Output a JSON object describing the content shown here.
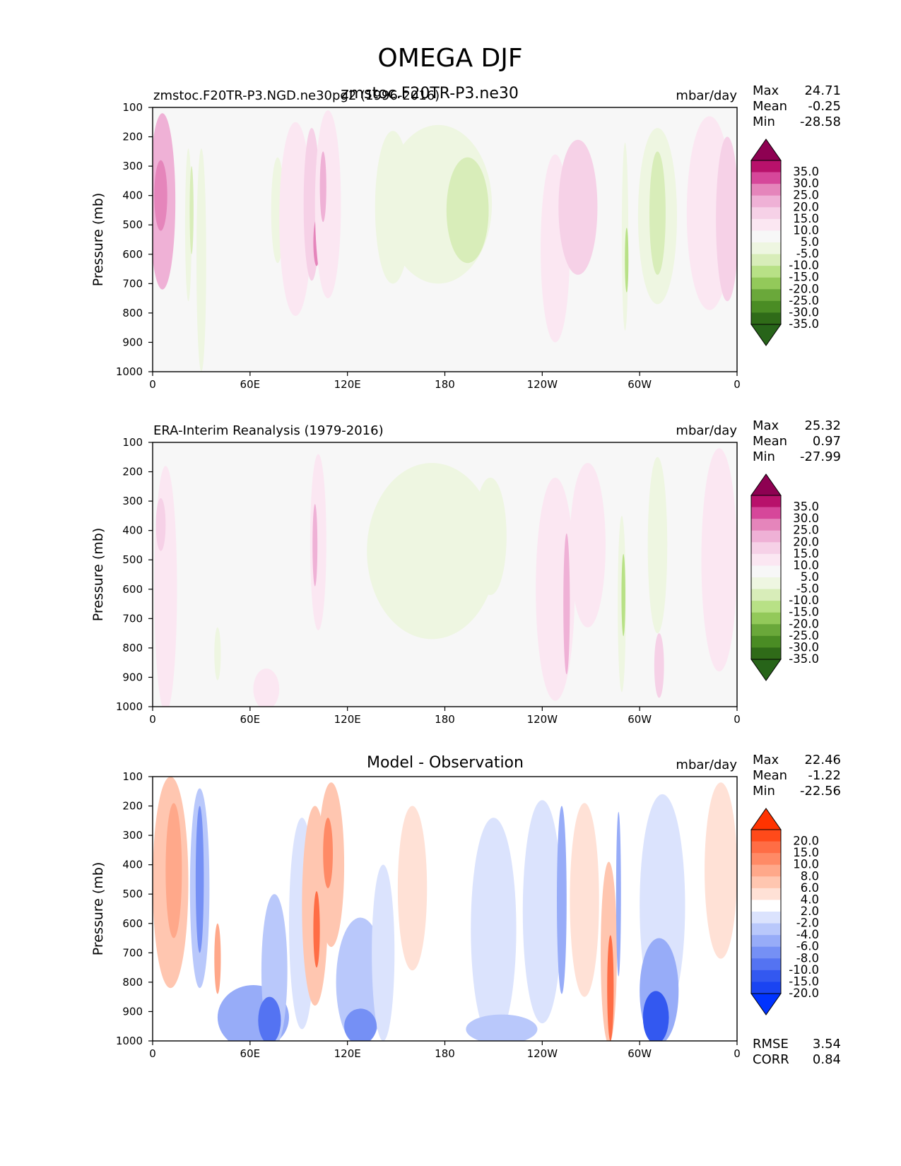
{
  "figure_title": "OMEGA DJF",
  "chart_data": [
    {
      "type": "contour",
      "panel": "model",
      "title_left": "zmstoc.F20TR-P3.NGD.ne30pg2 (1996-2016)",
      "title_center": "zmstoc.F20TR-P3.ne30",
      "units": "mbar/day",
      "ylabel": "Pressure (mb)",
      "xticks": [
        "0",
        "60E",
        "120E",
        "180",
        "120W",
        "60W",
        "0"
      ],
      "yticks": [
        "100",
        "200",
        "300",
        "400",
        "500",
        "600",
        "700",
        "800",
        "900",
        "1000"
      ],
      "xlim": [
        0,
        360
      ],
      "ylim": [
        100,
        1000
      ],
      "stats": [
        {
          "label": "Max",
          "value": "24.71"
        },
        {
          "label": "Mean",
          "value": "-0.25"
        },
        {
          "label": "Min",
          "value": "-28.58"
        }
      ],
      "colorbar": {
        "labels": [
          "35.0",
          "30.0",
          "25.0",
          "20.0",
          "15.0",
          "10.0",
          "5.0",
          "-5.0",
          "-10.0",
          "-15.0",
          "-20.0",
          "-25.0",
          "-30.0",
          "-35.0"
        ],
        "colors": [
          "#8e0152",
          "#b8116b",
          "#d6479a",
          "#e585bb",
          "#efb1d6",
          "#f6d1e7",
          "#fbe7f2",
          "#f7f7f7",
          "#eef6e1",
          "#d8edb9",
          "#b8e186",
          "#93c95a",
          "#6aa83a",
          "#4a8c24",
          "#2f6b18",
          "#276419"
        ]
      },
      "blobs": [
        {
          "x": 6,
          "y": 420,
          "rx": 8,
          "ry": 300,
          "level": 3
        },
        {
          "x": 5,
          "y": 400,
          "rx": 4,
          "ry": 120,
          "level": 4
        },
        {
          "x": 22,
          "y": 500,
          "rx": 2,
          "ry": 260,
          "level": -1
        },
        {
          "x": 24,
          "y": 450,
          "rx": 1.2,
          "ry": 150,
          "level": -2
        },
        {
          "x": 30,
          "y": 620,
          "rx": 3,
          "ry": 380,
          "level": -1
        },
        {
          "x": 77,
          "y": 450,
          "rx": 4,
          "ry": 180,
          "level": -1
        },
        {
          "x": 88,
          "y": 480,
          "rx": 10,
          "ry": 330,
          "level": 1
        },
        {
          "x": 98,
          "y": 430,
          "rx": 5,
          "ry": 260,
          "level": 2
        },
        {
          "x": 101,
          "y": 560,
          "rx": 2,
          "ry": 80,
          "level": 4
        },
        {
          "x": 108,
          "y": 430,
          "rx": 8,
          "ry": 320,
          "level": 1
        },
        {
          "x": 105,
          "y": 370,
          "rx": 2,
          "ry": 120,
          "level": 3
        },
        {
          "x": 148,
          "y": 440,
          "rx": 11,
          "ry": 260,
          "level": -1
        },
        {
          "x": 176,
          "y": 430,
          "rx": 33,
          "ry": 270,
          "level": -1
        },
        {
          "x": 194,
          "y": 450,
          "rx": 13,
          "ry": 180,
          "level": -2
        },
        {
          "x": 248,
          "y": 580,
          "rx": 9,
          "ry": 320,
          "level": 1
        },
        {
          "x": 262,
          "y": 440,
          "rx": 12,
          "ry": 230,
          "level": 2
        },
        {
          "x": 291,
          "y": 540,
          "rx": 2,
          "ry": 320,
          "level": -1
        },
        {
          "x": 292,
          "y": 620,
          "rx": 1.1,
          "ry": 110,
          "level": -3
        },
        {
          "x": 311,
          "y": 470,
          "rx": 12,
          "ry": 300,
          "level": -1
        },
        {
          "x": 311,
          "y": 460,
          "rx": 5,
          "ry": 210,
          "level": -2
        },
        {
          "x": 343,
          "y": 460,
          "rx": 14,
          "ry": 330,
          "level": 1
        },
        {
          "x": 354,
          "y": 480,
          "rx": 7,
          "ry": 280,
          "level": 2
        }
      ]
    },
    {
      "type": "contour",
      "panel": "reference",
      "title_left": "ERA-Interim Reanalysis (1979-2016)",
      "units": "mbar/day",
      "ylabel": "Pressure (mb)",
      "xticks": [
        "0",
        "60E",
        "120E",
        "180",
        "120W",
        "60W",
        "0"
      ],
      "yticks": [
        "100",
        "200",
        "300",
        "400",
        "500",
        "600",
        "700",
        "800",
        "900",
        "1000"
      ],
      "xlim": [
        0,
        360
      ],
      "ylim": [
        100,
        1000
      ],
      "stats": [
        {
          "label": "Max",
          "value": "25.32"
        },
        {
          "label": "Mean",
          "value": "0.97"
        },
        {
          "label": "Min",
          "value": "-27.99"
        }
      ],
      "colorbar": {
        "labels": [
          "35.0",
          "30.0",
          "25.0",
          "20.0",
          "15.0",
          "10.0",
          "5.0",
          "-5.0",
          "-10.0",
          "-15.0",
          "-20.0",
          "-25.0",
          "-30.0",
          "-35.0"
        ],
        "colors": [
          "#8e0152",
          "#b8116b",
          "#d6479a",
          "#e585bb",
          "#efb1d6",
          "#f6d1e7",
          "#fbe7f2",
          "#f7f7f7",
          "#eef6e1",
          "#d8edb9",
          "#b8e186",
          "#93c95a",
          "#6aa83a",
          "#4a8c24",
          "#2f6b18",
          "#276419"
        ]
      },
      "blobs": [
        {
          "x": 8,
          "y": 600,
          "rx": 7,
          "ry": 420,
          "level": 1
        },
        {
          "x": 5,
          "y": 380,
          "rx": 3,
          "ry": 90,
          "level": 2
        },
        {
          "x": 40,
          "y": 820,
          "rx": 2,
          "ry": 90,
          "level": -1
        },
        {
          "x": 70,
          "y": 940,
          "rx": 8,
          "ry": 70,
          "level": 1
        },
        {
          "x": 102,
          "y": 440,
          "rx": 5,
          "ry": 300,
          "level": 1
        },
        {
          "x": 100,
          "y": 450,
          "rx": 1.5,
          "ry": 140,
          "level": 3
        },
        {
          "x": 172,
          "y": 470,
          "rx": 40,
          "ry": 300,
          "level": -1
        },
        {
          "x": 208,
          "y": 420,
          "rx": 10,
          "ry": 200,
          "level": -1
        },
        {
          "x": 248,
          "y": 600,
          "rx": 12,
          "ry": 380,
          "level": 1
        },
        {
          "x": 255,
          "y": 650,
          "rx": 2,
          "ry": 240,
          "level": 3
        },
        {
          "x": 268,
          "y": 450,
          "rx": 11,
          "ry": 280,
          "level": 1
        },
        {
          "x": 289,
          "y": 650,
          "rx": 2.5,
          "ry": 300,
          "level": -1
        },
        {
          "x": 290,
          "y": 620,
          "rx": 1.2,
          "ry": 140,
          "level": -3
        },
        {
          "x": 311,
          "y": 450,
          "rx": 6,
          "ry": 300,
          "level": -1
        },
        {
          "x": 312,
          "y": 860,
          "rx": 3,
          "ry": 110,
          "level": 2
        },
        {
          "x": 349,
          "y": 500,
          "rx": 11,
          "ry": 380,
          "level": 1
        }
      ]
    },
    {
      "type": "contour",
      "panel": "difference",
      "title_center": "Model - Observation",
      "units": "mbar/day",
      "ylabel": "Pressure (mb)",
      "xticks": [
        "0",
        "60E",
        "120E",
        "180",
        "120W",
        "60W",
        "0"
      ],
      "yticks": [
        "100",
        "200",
        "300",
        "400",
        "500",
        "600",
        "700",
        "800",
        "900",
        "1000"
      ],
      "xlim": [
        0,
        360
      ],
      "ylim": [
        100,
        1000
      ],
      "stats": [
        {
          "label": "Max",
          "value": "22.46"
        },
        {
          "label": "Mean",
          "value": "-1.22"
        },
        {
          "label": "Min",
          "value": "-22.56"
        }
      ],
      "metrics": [
        {
          "label": "RMSE",
          "value": "3.54"
        },
        {
          "label": "CORR",
          "value": "0.84"
        }
      ],
      "colorbar": {
        "labels": [
          "20.0",
          "15.0",
          "10.0",
          "8.0",
          "6.0",
          "4.0",
          "2.0",
          "-2.0",
          "-4.0",
          "-6.0",
          "-8.0",
          "-10.0",
          "-15.0",
          "-20.0"
        ],
        "colors": [
          "#ff3300",
          "#ff4a1a",
          "#ff6d45",
          "#ff8a66",
          "#ffa88a",
          "#ffc6b0",
          "#ffe1d6",
          "#ffffff",
          "#dbe3fd",
          "#b9c8fb",
          "#97acf8",
          "#7590f5",
          "#5473f2",
          "#3358f0",
          "#1a44f2",
          "#0033ff"
        ]
      },
      "blobs": [
        {
          "x": 11,
          "y": 460,
          "rx": 11,
          "ry": 360,
          "level": 2
        },
        {
          "x": 13,
          "y": 420,
          "rx": 5,
          "ry": 230,
          "level": 3
        },
        {
          "x": 29,
          "y": 480,
          "rx": 6,
          "ry": 340,
          "level": -2
        },
        {
          "x": 29,
          "y": 450,
          "rx": 2.5,
          "ry": 250,
          "level": -4
        },
        {
          "x": 40,
          "y": 720,
          "rx": 2,
          "ry": 120,
          "level": 3
        },
        {
          "x": 62,
          "y": 920,
          "rx": 22,
          "ry": 110,
          "level": -3
        },
        {
          "x": 75,
          "y": 760,
          "rx": 8,
          "ry": 260,
          "level": -2
        },
        {
          "x": 72,
          "y": 930,
          "rx": 7,
          "ry": 80,
          "level": -5
        },
        {
          "x": 92,
          "y": 600,
          "rx": 8,
          "ry": 360,
          "level": -1
        },
        {
          "x": 100,
          "y": 540,
          "rx": 8,
          "ry": 340,
          "level": 2
        },
        {
          "x": 101,
          "y": 620,
          "rx": 2,
          "ry": 130,
          "level": 5
        },
        {
          "x": 110,
          "y": 400,
          "rx": 8,
          "ry": 280,
          "level": 2
        },
        {
          "x": 108,
          "y": 360,
          "rx": 3,
          "ry": 120,
          "level": 4
        },
        {
          "x": 128,
          "y": 800,
          "rx": 15,
          "ry": 220,
          "level": -2
        },
        {
          "x": 142,
          "y": 700,
          "rx": 7,
          "ry": 300,
          "level": -1
        },
        {
          "x": 128,
          "y": 950,
          "rx": 10,
          "ry": 60,
          "level": -4
        },
        {
          "x": 160,
          "y": 480,
          "rx": 9,
          "ry": 280,
          "level": 1
        },
        {
          "x": 210,
          "y": 620,
          "rx": 14,
          "ry": 380,
          "level": -1
        },
        {
          "x": 215,
          "y": 960,
          "rx": 22,
          "ry": 50,
          "level": -2
        },
        {
          "x": 240,
          "y": 560,
          "rx": 12,
          "ry": 380,
          "level": -1
        },
        {
          "x": 252,
          "y": 520,
          "rx": 3,
          "ry": 320,
          "level": -3
        },
        {
          "x": 266,
          "y": 520,
          "rx": 9,
          "ry": 330,
          "level": 1
        },
        {
          "x": 281,
          "y": 700,
          "rx": 5,
          "ry": 310,
          "level": 2
        },
        {
          "x": 282,
          "y": 820,
          "rx": 2,
          "ry": 180,
          "level": 5
        },
        {
          "x": 287,
          "y": 500,
          "rx": 1.5,
          "ry": 280,
          "level": -3
        },
        {
          "x": 314,
          "y": 540,
          "rx": 14,
          "ry": 380,
          "level": -1
        },
        {
          "x": 312,
          "y": 830,
          "rx": 12,
          "ry": 180,
          "level": -3
        },
        {
          "x": 310,
          "y": 920,
          "rx": 8,
          "ry": 90,
          "level": -6
        },
        {
          "x": 350,
          "y": 420,
          "rx": 10,
          "ry": 300,
          "level": 1
        }
      ]
    }
  ]
}
